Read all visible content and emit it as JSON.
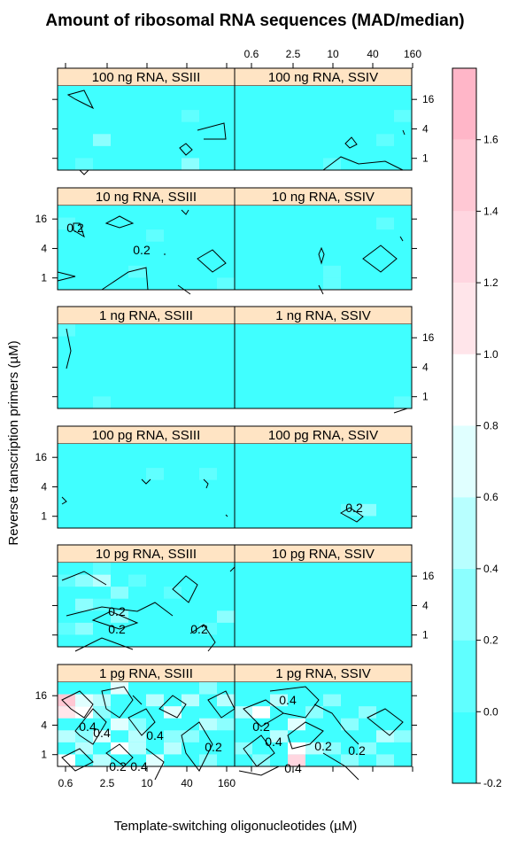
{
  "chart_data": {
    "type": "heatmap",
    "title": "Amount of ribosomal RNA sequences (MAD/median)",
    "xlabel": "Template-switching oligonucleotides (µM)",
    "ylabel": "Reverse transcription primers (µM)",
    "x_ticks": [
      "0.6",
      "2.5",
      "10",
      "40",
      "160"
    ],
    "y_ticks": [
      "1",
      "4",
      "16"
    ],
    "colorbar": {
      "ticks": [
        "-0.2",
        "0.0",
        "0.2",
        "0.4",
        "0.6",
        "0.8",
        "1.0",
        "1.2",
        "1.4",
        "1.6"
      ],
      "bands": [
        "#40ffff",
        "#60ffff",
        "#8cffff",
        "#b8ffff",
        "#e0ffff",
        "#ffffff",
        "#ffe5ea",
        "#ffd6e0",
        "#ffc8d4",
        "#ffb6c8"
      ]
    },
    "panels": [
      {
        "label": "100 ng RNA, SSIII",
        "contour_labels": []
      },
      {
        "label": "100 ng RNA, SSIV",
        "contour_labels": []
      },
      {
        "label": "10 ng RNA, SSIII",
        "contour_labels": [
          "0.2",
          "0.2"
        ]
      },
      {
        "label": "10 ng RNA, SSIV",
        "contour_labels": []
      },
      {
        "label": "1 ng RNA, SSIII",
        "contour_labels": []
      },
      {
        "label": "1 ng RNA, SSIV",
        "contour_labels": []
      },
      {
        "label": "100 pg RNA, SSIII",
        "contour_labels": []
      },
      {
        "label": "100 pg RNA, SSIV",
        "contour_labels": [
          "0.2"
        ]
      },
      {
        "label": "10 pg RNA, SSIII",
        "contour_labels": [
          "0.2",
          "0.2",
          "0.2"
        ]
      },
      {
        "label": "10 pg RNA, SSIV",
        "contour_labels": []
      },
      {
        "label": "1 pg RNA, SSIII",
        "contour_labels": [
          "0.4",
          "0.4",
          "0.4",
          "0.2",
          "0.4",
          "0.2"
        ]
      },
      {
        "label": "1 pg RNA, SSIV",
        "contour_labels": [
          "0.4",
          "0.2",
          "0.4",
          "0.2",
          "0.2",
          "0.4"
        ]
      }
    ]
  }
}
